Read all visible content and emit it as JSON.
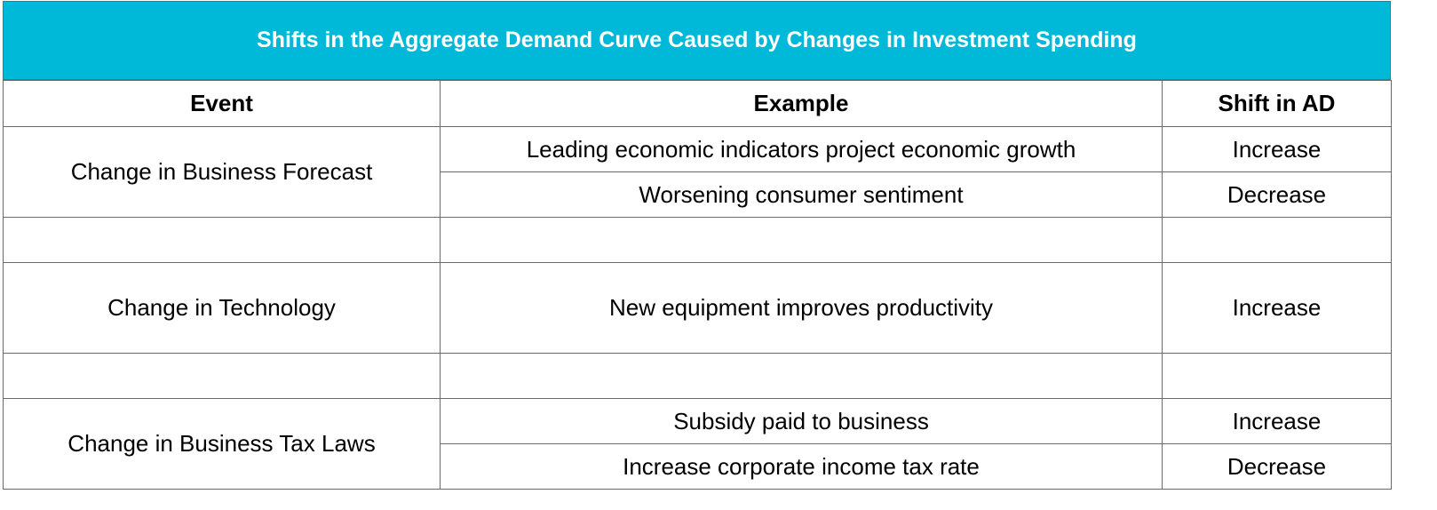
{
  "table": {
    "title": "Shifts in the Aggregate Demand Curve Caused by Changes in Investment Spending",
    "headers": {
      "event": "Event",
      "example": "Example",
      "shift": "Shift in AD"
    },
    "groups": [
      {
        "event": "Change in Business Forecast",
        "rows": [
          {
            "example": "Leading economic indicators project economic growth",
            "shift": "Increase"
          },
          {
            "example": "Worsening consumer sentiment",
            "shift": "Decrease"
          }
        ]
      },
      {
        "event": "Change in Technology",
        "rows": [
          {
            "example": "New equipment improves productivity",
            "shift": "Increase"
          }
        ]
      },
      {
        "event": "Change in Business Tax Laws",
        "rows": [
          {
            "example": "Subsidy paid to business",
            "shift": "Increase"
          },
          {
            "example": "Increase corporate income tax rate",
            "shift": "Decrease"
          }
        ]
      }
    ],
    "colors": {
      "title_bg": "#00b9d8",
      "title_text": "#ffffff",
      "border": "#6a6a6a"
    }
  }
}
